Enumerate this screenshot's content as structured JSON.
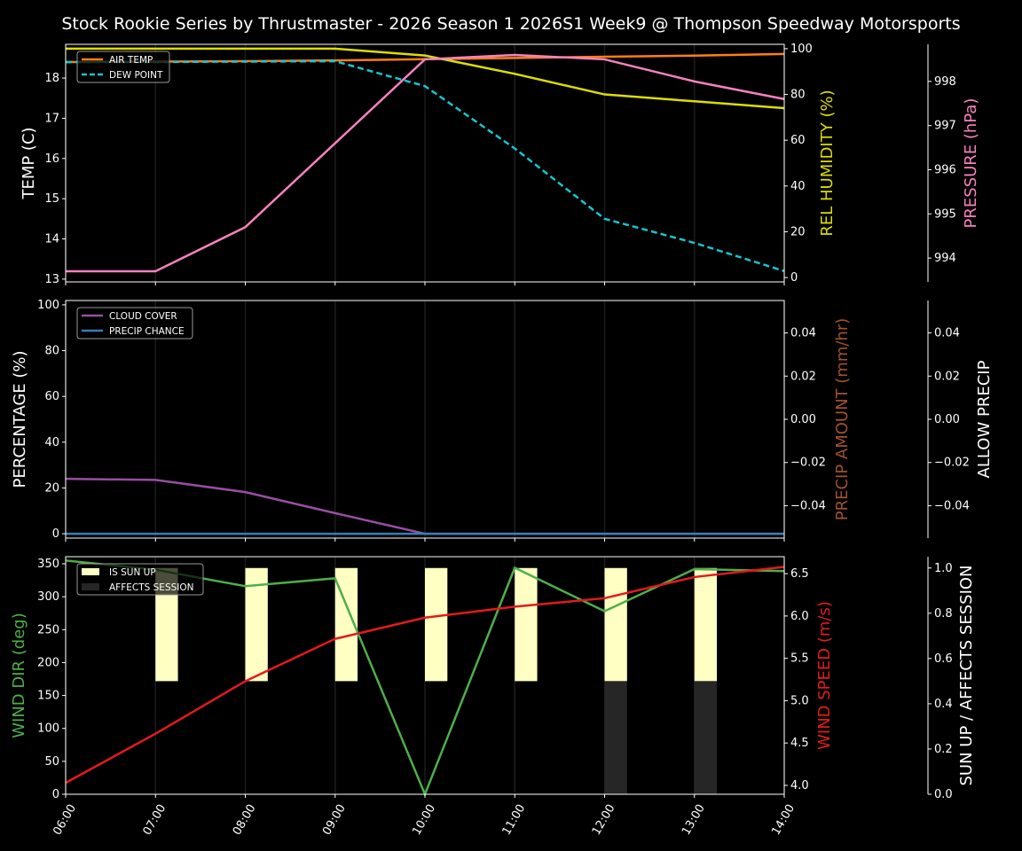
{
  "title": "Stock Rookie Series by Thrustmaster - 2026 Season 1 2026S1 Week9 @ Thompson Speedway Motorsports",
  "chart_data": [
    {
      "type": "line",
      "panel": "top",
      "x": [
        "06:00",
        "07:00",
        "08:00",
        "09:00",
        "10:00",
        "11:00",
        "12:00",
        "13:00",
        "14:00"
      ],
      "legend": "top-left",
      "grid": "vertical",
      "axes": {
        "left": {
          "label": "TEMP (C)",
          "ylim": [
            12.93,
            18.84
          ],
          "ticks": [
            13,
            14,
            15,
            16,
            17,
            18
          ],
          "color": "#ffffff"
        },
        "right": {
          "label": "REL HUMIDITY (%)",
          "ylim": [
            -1.9,
            101.9
          ],
          "ticks": [
            0,
            20,
            40,
            60,
            80,
            100
          ],
          "color": "#dddd00"
        },
        "right2": {
          "label": "PRESSURE (hPa)",
          "ylim": [
            993.46,
            998.84
          ],
          "ticks": [
            994,
            995,
            996,
            997,
            998
          ],
          "color": "#f781bf"
        }
      },
      "series": [
        {
          "name": "AIR TEMP",
          "axis": "left",
          "color": "#ff7f0e",
          "dash": false,
          "values": [
            18.4,
            18.41,
            18.42,
            18.44,
            18.47,
            18.5,
            18.53,
            18.56,
            18.6
          ]
        },
        {
          "name": "DEW POINT",
          "axis": "left",
          "color": "#17c5cf",
          "dash": true,
          "values": [
            18.4,
            18.4,
            18.41,
            18.42,
            17.8,
            16.25,
            14.5,
            13.9,
            13.2
          ]
        },
        {
          "axis": "right",
          "color": "#dddd00",
          "dash": false,
          "values": [
            100,
            100,
            100,
            100,
            97,
            89,
            80,
            77,
            74
          ]
        },
        {
          "axis": "right2",
          "color": "#f781bf",
          "dash": false,
          "values": [
            993.7,
            993.7,
            994.7,
            996.6,
            998.5,
            998.6,
            998.5,
            998.0,
            997.6
          ]
        }
      ]
    },
    {
      "type": "line",
      "panel": "middle",
      "x": [
        "06:00",
        "07:00",
        "08:00",
        "09:00",
        "10:00",
        "11:00",
        "12:00",
        "13:00",
        "14:00"
      ],
      "legend": "top-left",
      "grid": "vertical",
      "axes": {
        "left": {
          "label": "PERCENTAGE (%)",
          "ylim": [
            -1.9,
            101.9
          ],
          "ticks": [
            0,
            20,
            40,
            60,
            80,
            100
          ],
          "color": "#ffffff"
        },
        "right": {
          "label": "PRECIP AMOUNT (mm/hr)",
          "ylim": [
            -0.055,
            0.055
          ],
          "ticks": [
            -0.04,
            -0.02,
            0.0,
            0.02,
            0.04
          ],
          "tick_labels": [
            "−0.04",
            "−0.02",
            "0.00",
            "0.02",
            "0.04"
          ],
          "color": "#a0522d"
        },
        "right2": {
          "label": "ALLOW PRECIP",
          "ylim": [
            -0.055,
            0.055
          ],
          "ticks": [
            -0.04,
            -0.02,
            0.0,
            0.02,
            0.04
          ],
          "tick_labels": [
            "−0.04",
            "−0.02",
            "0.00",
            "0.02",
            "0.04"
          ],
          "color": "#ffffff"
        }
      },
      "series": [
        {
          "name": "CLOUD COVER",
          "axis": "left",
          "color": "#984ea3",
          "dash": false,
          "values": [
            24,
            23.5,
            18.2,
            9,
            0,
            0,
            0,
            0,
            0
          ]
        },
        {
          "name": "PRECIP CHANCE",
          "axis": "left",
          "color": "#377eb8",
          "dash": false,
          "values": [
            0,
            0,
            0,
            0,
            0,
            0,
            0,
            0,
            0
          ]
        }
      ]
    },
    {
      "type": "line",
      "panel": "bottom",
      "x": [
        "06:00",
        "07:00",
        "08:00",
        "09:00",
        "10:00",
        "11:00",
        "12:00",
        "13:00",
        "14:00"
      ],
      "legend": "top-left",
      "grid": "vertical",
      "axes": {
        "left": {
          "label": "WIND DIR (deg)",
          "ylim": [
            0,
            360.8
          ],
          "ticks": [
            0,
            50,
            100,
            150,
            200,
            250,
            300,
            350
          ],
          "color": "#4daf4a"
        },
        "right": {
          "label": "WIND SPEED (m/s)",
          "ylim": [
            3.895,
            6.7
          ],
          "ticks": [
            4.0,
            4.5,
            5.0,
            5.5,
            6.0,
            6.5
          ],
          "tick_labels": [
            "4.0",
            "4.5",
            "5.0",
            "5.5",
            "6.0",
            "6.5"
          ],
          "color": "#e41a1c"
        },
        "right2": {
          "label": "SUN UP / AFFECTS SESSION",
          "ylim": [
            0,
            1.05
          ],
          "ticks": [
            0,
            0.2,
            0.4,
            0.6,
            0.8,
            1.0
          ],
          "tick_labels": [
            "0.0",
            "0.2",
            "0.4",
            "0.6",
            "0.8",
            "1.0"
          ],
          "color": "#ffffff"
        }
      },
      "bars": [
        {
          "name": "IS SUN UP",
          "color": "#ffffc4",
          "values": [
            0,
            1,
            1,
            1,
            1,
            1,
            1,
            1,
            0
          ]
        },
        {
          "name": "AFFECTS SESSION",
          "color": "#262626",
          "values": [
            0,
            0,
            0,
            0,
            0,
            0,
            1,
            1,
            0
          ]
        }
      ],
      "series": [
        {
          "axis": "left",
          "color": "#4daf4a",
          "dash": false,
          "values": [
            355,
            341,
            316,
            328,
            0,
            344,
            278,
            342,
            339
          ]
        },
        {
          "axis": "right",
          "color": "#e41a1c",
          "dash": false,
          "values": [
            4.03,
            4.61,
            5.23,
            5.73,
            5.98,
            6.11,
            6.21,
            6.46,
            6.58
          ]
        }
      ]
    }
  ]
}
